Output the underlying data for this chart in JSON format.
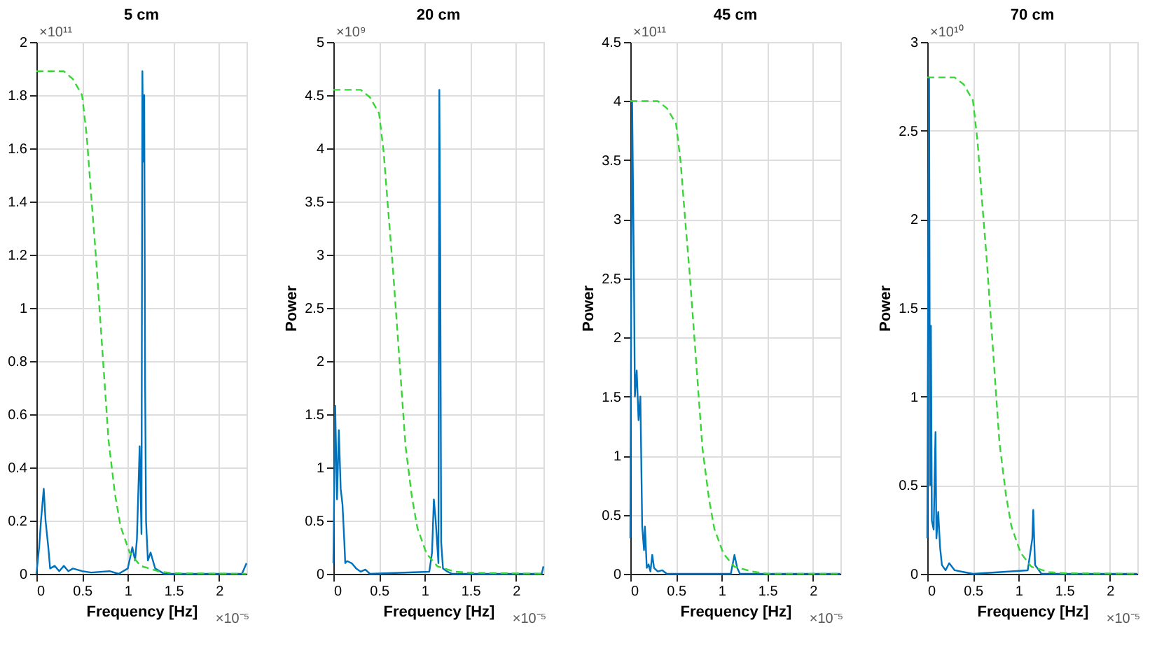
{
  "chart_data": [
    {
      "type": "line",
      "title": "5 cm",
      "xlabel": "Frequency [Hz]",
      "annotations": [
        "×10¹¹",
        "×10⁻⁵"
      ],
      "xlim": [
        0,
        2.3
      ],
      "xticks": [
        0,
        0.5,
        1,
        1.5,
        2
      ],
      "ylim": [
        0,
        2
      ],
      "yticks": [
        0,
        0.2,
        0.4,
        0.6,
        0.8,
        1,
        1.2,
        1.4,
        1.6,
        1.8,
        2
      ],
      "grid": true,
      "series": [
        {
          "color": "#0072bd",
          "line_style": "solid",
          "x": [
            0,
            0.03,
            0.05,
            0.08,
            0.1,
            0.13,
            0.15,
            0.2,
            0.25,
            0.3,
            0.35,
            0.4,
            0.5,
            0.6,
            0.8,
            0.9,
            1.0,
            1.05,
            1.08,
            1.1,
            1.13,
            1.15,
            1.16,
            1.17,
            1.18,
            1.19,
            1.2,
            1.22,
            1.25,
            1.3,
            1.4,
            2.25,
            2.3
          ],
          "values": [
            0,
            0.1,
            0.2,
            0.32,
            0.2,
            0.1,
            0.02,
            0.03,
            0.01,
            0.03,
            0.01,
            0.02,
            0.01,
            0.005,
            0.01,
            0,
            0.02,
            0.1,
            0.05,
            0.13,
            0.48,
            0.15,
            1.89,
            1.55,
            1.8,
            0.7,
            0.2,
            0.05,
            0.08,
            0.02,
            0,
            0,
            0.04
          ]
        },
        {
          "color": "#3ad43a",
          "line_style": "dashed",
          "x": [
            0,
            0.3,
            0.4,
            0.5,
            0.55,
            0.6,
            0.65,
            0.72,
            0.79,
            0.86,
            0.92,
            1.02,
            1.14,
            1.33,
            1.5,
            2.3
          ],
          "values": [
            1.89,
            1.89,
            1.86,
            1.8,
            1.65,
            1.42,
            1.2,
            0.85,
            0.5,
            0.3,
            0.18,
            0.08,
            0.03,
            0.01,
            0.002,
            0
          ]
        }
      ]
    },
    {
      "type": "line",
      "title": "20 cm",
      "xlabel": "Frequency [Hz]",
      "ylabel": "Power",
      "annotations": [
        "×10⁹",
        "×10⁻⁵"
      ],
      "xlim": [
        0,
        2.3
      ],
      "xticks": [
        0,
        0.5,
        1,
        1.5,
        2
      ],
      "ylim": [
        0,
        5
      ],
      "yticks": [
        0,
        0.5,
        1,
        1.5,
        2,
        2.5,
        3,
        3.5,
        4,
        4.5,
        5
      ],
      "grid": true,
      "series": [
        {
          "color": "#0072bd",
          "line_style": "solid",
          "x": [
            0,
            0.02,
            0.04,
            0.06,
            0.08,
            0.1,
            0.12,
            0.13,
            0.15,
            0.2,
            0.25,
            0.3,
            0.35,
            0.4,
            1.05,
            1.08,
            1.1,
            1.12,
            1.15,
            1.16,
            1.17,
            1.18,
            1.2,
            1.25,
            1.3,
            2.28,
            2.3
          ],
          "values": [
            0.1,
            1.58,
            0.7,
            1.35,
            0.8,
            0.65,
            0.3,
            0.1,
            0.12,
            0.1,
            0.05,
            0.02,
            0.04,
            0,
            0.02,
            0.2,
            0.7,
            0.5,
            0.1,
            4.55,
            3.0,
            0.3,
            0.05,
            0.02,
            0,
            0,
            0.07
          ]
        },
        {
          "color": "#3ad43a",
          "line_style": "dashed",
          "x": [
            0,
            0.3,
            0.4,
            0.5,
            0.55,
            0.6,
            0.65,
            0.72,
            0.79,
            0.86,
            0.92,
            1.02,
            1.14,
            1.33,
            1.5,
            2.3
          ],
          "values": [
            4.55,
            4.55,
            4.48,
            4.33,
            3.97,
            3.42,
            2.89,
            2.05,
            1.2,
            0.72,
            0.43,
            0.19,
            0.07,
            0.02,
            0.01,
            0
          ]
        }
      ]
    },
    {
      "type": "line",
      "title": "45 cm",
      "xlabel": "Frequency [Hz]",
      "ylabel": "Power",
      "annotations": [
        "×10¹¹",
        "×10⁻⁵"
      ],
      "xlim": [
        0,
        2.3
      ],
      "xticks": [
        0,
        0.5,
        1,
        1.5,
        2
      ],
      "ylim": [
        0,
        4.5
      ],
      "yticks": [
        0,
        0.5,
        1,
        1.5,
        2,
        2.5,
        3,
        3.5,
        4,
        4.5
      ],
      "grid": true,
      "series": [
        {
          "color": "#0072bd",
          "line_style": "solid",
          "x": [
            0,
            0.01,
            0.02,
            0.04,
            0.05,
            0.07,
            0.09,
            0.11,
            0.13,
            0.15,
            0.16,
            0.18,
            0.2,
            0.22,
            0.24,
            0.26,
            0.3,
            0.35,
            0.4,
            1.1,
            1.14,
            1.17,
            1.2,
            2.3
          ],
          "values": [
            0.3,
            2.35,
            4.0,
            2.5,
            1.5,
            1.72,
            1.3,
            1.5,
            0.4,
            0.2,
            0.4,
            0.05,
            0.08,
            0.02,
            0.16,
            0.05,
            0.02,
            0.03,
            0,
            0,
            0.16,
            0.05,
            0,
            0
          ]
        },
        {
          "color": "#3ad43a",
          "line_style": "dashed",
          "x": [
            0,
            0.3,
            0.4,
            0.5,
            0.55,
            0.6,
            0.65,
            0.72,
            0.79,
            0.86,
            0.92,
            1.02,
            1.14,
            1.33,
            1.5,
            2.3
          ],
          "values": [
            4.0,
            4.0,
            3.94,
            3.81,
            3.49,
            3.0,
            2.54,
            1.8,
            1.06,
            0.64,
            0.38,
            0.17,
            0.06,
            0.02,
            0,
            0
          ]
        }
      ]
    },
    {
      "type": "line",
      "title": "70 cm",
      "xlabel": "Frequency [Hz]",
      "ylabel": "Power",
      "annotations": [
        "×10¹⁰",
        "×10⁻⁵"
      ],
      "xlim": [
        0,
        2.3
      ],
      "xticks": [
        0,
        0.5,
        1,
        1.5,
        2
      ],
      "ylim": [
        0,
        3
      ],
      "yticks": [
        0,
        0.5,
        1,
        1.5,
        2,
        2.5,
        3
      ],
      "grid": true,
      "series": [
        {
          "color": "#0072bd",
          "line_style": "solid",
          "x": [
            0,
            0.01,
            0.02,
            0.03,
            0.04,
            0.05,
            0.07,
            0.09,
            0.1,
            0.12,
            0.14,
            0.16,
            0.2,
            0.24,
            0.3,
            0.4,
            0.5,
            1.1,
            1.15,
            1.16,
            1.18,
            1.25,
            2.3
          ],
          "values": [
            0.2,
            1.72,
            2.8,
            0.5,
            1.4,
            0.3,
            0.25,
            0.8,
            0.2,
            0.35,
            0.15,
            0.05,
            0.02,
            0.06,
            0.02,
            0.01,
            0,
            0.02,
            0.2,
            0.36,
            0.05,
            0,
            0
          ]
        },
        {
          "color": "#3ad43a",
          "line_style": "dashed",
          "x": [
            0,
            0.3,
            0.4,
            0.5,
            0.55,
            0.6,
            0.65,
            0.72,
            0.79,
            0.86,
            0.92,
            1.02,
            1.14,
            1.33,
            1.5,
            2.3
          ],
          "values": [
            2.8,
            2.8,
            2.76,
            2.67,
            2.44,
            2.1,
            1.78,
            1.26,
            0.74,
            0.45,
            0.27,
            0.12,
            0.04,
            0.01,
            0.003,
            0
          ]
        }
      ]
    }
  ]
}
